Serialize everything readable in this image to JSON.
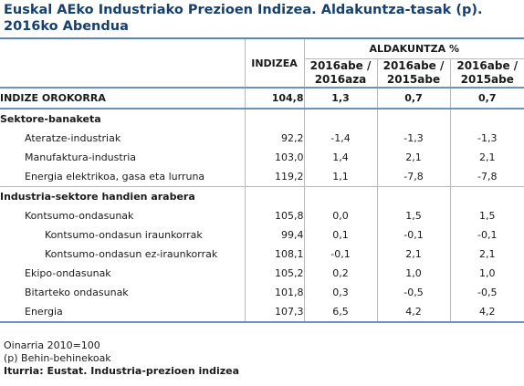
{
  "title": "Euskal AEko Industriako Prezioen Indizea. Aldakuntza-tasak (p). 2016ko Abendua",
  "header": {
    "indizea": "INDIZEA",
    "aldakuntza": "ALDAKUNTZA %",
    "periods": [
      {
        "line1": "2016abe /",
        "line2": "2016aza"
      },
      {
        "line1": "2016abe /",
        "line2": "2015abe"
      },
      {
        "line1": "2016abe /",
        "line2": "2015abe"
      }
    ]
  },
  "total": {
    "label": "INDIZE OROKORRA",
    "index": "104,8",
    "v1": "1,3",
    "v2": "0,7",
    "v3": "0,7"
  },
  "sections": [
    {
      "title": "Sektore-banaketa",
      "rows": [
        {
          "label": "Ateratze-industriak",
          "indent": 1,
          "index": "92,2",
          "v1": "-1,4",
          "v2": "-1,3",
          "v3": "-1,3"
        },
        {
          "label": "Manufaktura-industria",
          "indent": 1,
          "index": "103,0",
          "v1": "1,4",
          "v2": "2,1",
          "v3": "2,1"
        },
        {
          "label": "Energia elektrikoa, gasa eta lurruna",
          "indent": 1,
          "index": "119,2",
          "v1": "1,1",
          "v2": "-7,8",
          "v3": "-7,8"
        }
      ]
    },
    {
      "title": "Industria-sektore handien arabera",
      "rows": [
        {
          "label": "Kontsumo-ondasunak",
          "indent": 1,
          "index": "105,8",
          "v1": "0,0",
          "v2": "1,5",
          "v3": "1,5"
        },
        {
          "label": "Kontsumo-ondasun iraunkorrak",
          "indent": 2,
          "index": "99,4",
          "v1": "0,1",
          "v2": "-0,1",
          "v3": "-0,1"
        },
        {
          "label": "Kontsumo-ondasun ez-iraunkorrak",
          "indent": 2,
          "index": "108,1",
          "v1": "-0,1",
          "v2": "2,1",
          "v3": "2,1"
        },
        {
          "label": "Ekipo-ondasunak",
          "indent": 1,
          "index": "105,2",
          "v1": "0,2",
          "v2": "1,0",
          "v3": "1,0"
        },
        {
          "label": "Bitarteko ondasunak",
          "indent": 1,
          "index": "101,8",
          "v1": "0,3",
          "v2": "-0,5",
          "v3": "-0,5"
        },
        {
          "label": "Energia",
          "indent": 1,
          "index": "107,3",
          "v1": "6,5",
          "v2": "4,2",
          "v3": "4,2"
        }
      ]
    }
  ],
  "notes": {
    "base": "Oinarria 2010=100",
    "provisional": "(p) Behin-behinekoak",
    "source": "Iturria: Eustat. Industria-prezioen indizea"
  }
}
